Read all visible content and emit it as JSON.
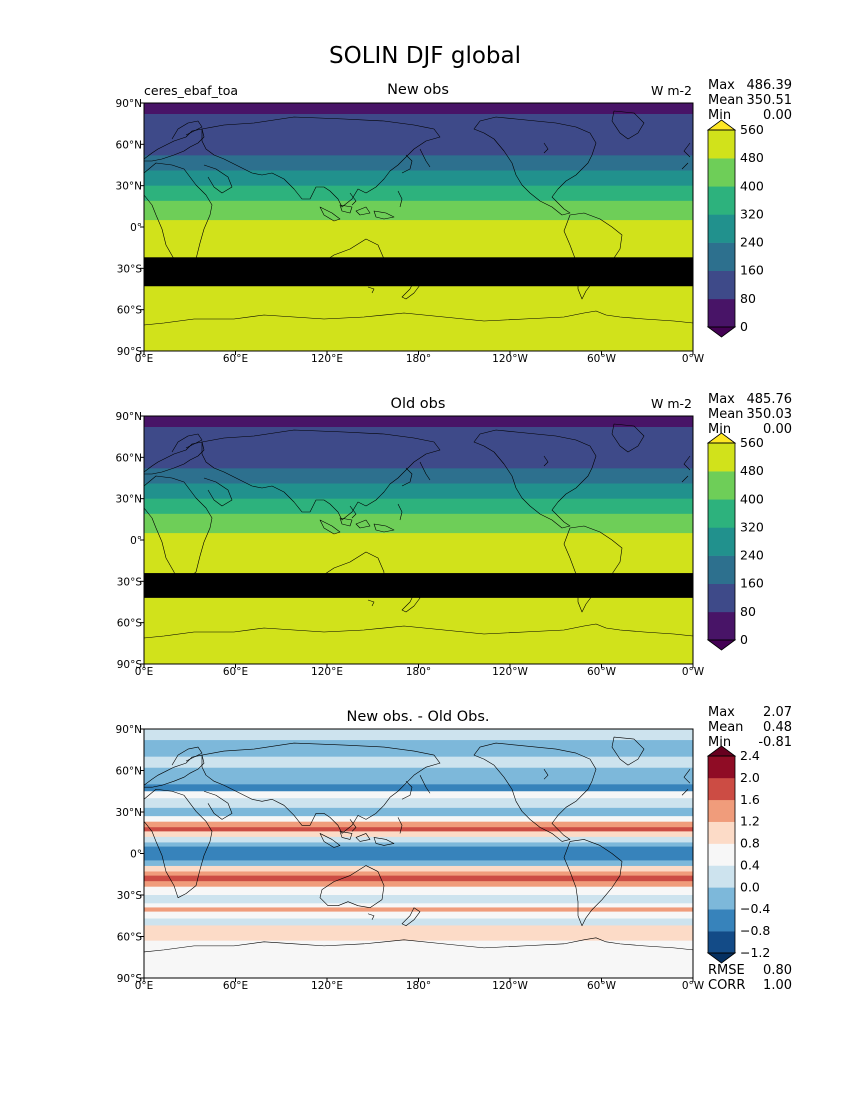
{
  "figure_title": "SOLIN DJF global",
  "chart_data": [
    {
      "type": "heatmap",
      "title": "New obs",
      "left_label": "ceres_ebaf_toa",
      "units": "W m-2",
      "stats": {
        "max_label": "Max",
        "max": "486.39",
        "mean_label": "Mean",
        "mean": "350.51",
        "min_label": "Min",
        "min": "0.00"
      },
      "x_ticks": [
        "0°E",
        "60°E",
        "120°E",
        "180°",
        "120°W",
        "60°W",
        "0°W"
      ],
      "y_ticks": [
        "90°N",
        "60°N",
        "30°N",
        "0°",
        "30°S",
        "60°S",
        "90°S"
      ],
      "xlim": [
        0,
        360
      ],
      "ylim": [
        -90,
        90
      ],
      "colorbar": {
        "levels": [
          0,
          80,
          160,
          240,
          320,
          400,
          480,
          560
        ],
        "labels": [
          "0",
          "80",
          "160",
          "240",
          "320",
          "400",
          "480",
          "560"
        ],
        "colors": [
          "#481467",
          "#3e4a89",
          "#2d708e",
          "#21918d",
          "#2db27d",
          "#6ece58",
          "#d1e21b"
        ],
        "under_color": "#440154",
        "over_color": "#fde725"
      },
      "bands": [
        {
          "lat_min": 82,
          "lat_max": 90,
          "level": 0
        },
        {
          "lat_min": 52,
          "lat_max": 82,
          "level": 1
        },
        {
          "lat_min": 41,
          "lat_max": 52,
          "level": 2
        },
        {
          "lat_min": 30,
          "lat_max": 41,
          "level": 3
        },
        {
          "lat_min": 19,
          "lat_max": 30,
          "level": 4
        },
        {
          "lat_min": 5,
          "lat_max": 19,
          "level": 5
        },
        {
          "lat_min": -22,
          "lat_max": 5,
          "level": 6
        },
        {
          "lat_min": -43,
          "lat_max": -22,
          "level": 7
        },
        {
          "lat_min": -90,
          "lat_max": -43,
          "level": 6
        }
      ]
    },
    {
      "type": "heatmap",
      "title": "Old obs",
      "units": "W m-2",
      "stats": {
        "max_label": "Max",
        "max": "485.76",
        "mean_label": "Mean",
        "mean": "350.03",
        "min_label": "Min",
        "min": "0.00"
      },
      "x_ticks": [
        "0°E",
        "60°E",
        "120°E",
        "180°",
        "120°W",
        "60°W",
        "0°W"
      ],
      "y_ticks": [
        "90°N",
        "60°N",
        "30°N",
        "0°",
        "30°S",
        "60°S",
        "90°S"
      ],
      "xlim": [
        0,
        360
      ],
      "ylim": [
        -90,
        90
      ],
      "colorbar": {
        "levels": [
          0,
          80,
          160,
          240,
          320,
          400,
          480,
          560
        ],
        "labels": [
          "0",
          "80",
          "160",
          "240",
          "320",
          "400",
          "480",
          "560"
        ],
        "colors": [
          "#481467",
          "#3e4a89",
          "#2d708e",
          "#21918d",
          "#2db27d",
          "#6ece58",
          "#d1e21b"
        ],
        "under_color": "#440154",
        "over_color": "#fde725"
      },
      "bands": [
        {
          "lat_min": 82,
          "lat_max": 90,
          "level": 0
        },
        {
          "lat_min": 52,
          "lat_max": 82,
          "level": 1
        },
        {
          "lat_min": 41,
          "lat_max": 52,
          "level": 2
        },
        {
          "lat_min": 30,
          "lat_max": 41,
          "level": 3
        },
        {
          "lat_min": 19,
          "lat_max": 30,
          "level": 4
        },
        {
          "lat_min": 5,
          "lat_max": 19,
          "level": 5
        },
        {
          "lat_min": -24,
          "lat_max": 5,
          "level": 6
        },
        {
          "lat_min": -42,
          "lat_max": -24,
          "level": 7
        },
        {
          "lat_min": -90,
          "lat_max": -42,
          "level": 6
        }
      ]
    },
    {
      "type": "heatmap",
      "title": "New obs. - Old Obs.",
      "stats": {
        "max_label": "Max",
        "max": "2.07",
        "mean_label": "Mean",
        "mean": "0.48",
        "min_label": "Min",
        "min": "-0.81"
      },
      "bottom_stats": {
        "rmse_label": "RMSE",
        "rmse": "0.80",
        "corr_label": "CORR",
        "corr": "1.00"
      },
      "x_ticks": [
        "0°E",
        "60°E",
        "120°E",
        "180°",
        "120°W",
        "60°W",
        "0°W"
      ],
      "y_ticks": [
        "90°N",
        "60°N",
        "30°N",
        "0°",
        "30°S",
        "60°S",
        "90°S"
      ],
      "xlim": [
        0,
        360
      ],
      "ylim": [
        -90,
        90
      ],
      "colorbar": {
        "levels": [
          -1.2,
          -0.8,
          -0.4,
          0.0,
          0.4,
          0.8,
          1.2,
          1.6,
          2.0,
          2.4
        ],
        "labels": [
          "−1.2",
          "−0.8",
          "−0.4",
          "0.0",
          "0.4",
          "0.8",
          "1.2",
          "1.6",
          "2.0",
          "2.4"
        ],
        "colors": [
          "#134b87",
          "#3783bb",
          "#7db8da",
          "#cde3ee",
          "#f7f7f7",
          "#fcdbc7",
          "#f09c7b",
          "#cc4c44",
          "#8f0c25"
        ],
        "under_color": "#053061",
        "over_color": "#67001f"
      },
      "bands": [
        {
          "lat_min": 82,
          "lat_max": 90,
          "level": 3
        },
        {
          "lat_min": 70,
          "lat_max": 82,
          "level": 2
        },
        {
          "lat_min": 62,
          "lat_max": 70,
          "level": 3
        },
        {
          "lat_min": 50,
          "lat_max": 62,
          "level": 2
        },
        {
          "lat_min": 45,
          "lat_max": 50,
          "level": 1
        },
        {
          "lat_min": 40,
          "lat_max": 45,
          "level": 4
        },
        {
          "lat_min": 33,
          "lat_max": 40,
          "level": 3
        },
        {
          "lat_min": 27,
          "lat_max": 33,
          "level": 2
        },
        {
          "lat_min": 23,
          "lat_max": 27,
          "level": 4
        },
        {
          "lat_min": 19,
          "lat_max": 23,
          "level": 6
        },
        {
          "lat_min": 16,
          "lat_max": 19,
          "level": 7
        },
        {
          "lat_min": 12,
          "lat_max": 16,
          "level": 5
        },
        {
          "lat_min": 8,
          "lat_max": 12,
          "level": 3
        },
        {
          "lat_min": 5,
          "lat_max": 8,
          "level": 2
        },
        {
          "lat_min": -5,
          "lat_max": 5,
          "level": 1
        },
        {
          "lat_min": -9,
          "lat_max": -5,
          "level": 2
        },
        {
          "lat_min": -13,
          "lat_max": -9,
          "level": 5
        },
        {
          "lat_min": -16,
          "lat_max": -13,
          "level": 6
        },
        {
          "lat_min": -20,
          "lat_max": -16,
          "level": 7
        },
        {
          "lat_min": -24,
          "lat_max": -20,
          "level": 6
        },
        {
          "lat_min": -30,
          "lat_max": -24,
          "level": 4
        },
        {
          "lat_min": -36,
          "lat_max": -30,
          "level": 3
        },
        {
          "lat_min": -39,
          "lat_max": -36,
          "level": 4
        },
        {
          "lat_min": -42,
          "lat_max": -39,
          "level": 6
        },
        {
          "lat_min": -47,
          "lat_max": -42,
          "level": 4
        },
        {
          "lat_min": -52,
          "lat_max": -47,
          "level": 3
        },
        {
          "lat_min": -63,
          "lat_max": -52,
          "level": 5
        },
        {
          "lat_min": -90,
          "lat_max": -63,
          "level": 4
        }
      ]
    }
  ]
}
